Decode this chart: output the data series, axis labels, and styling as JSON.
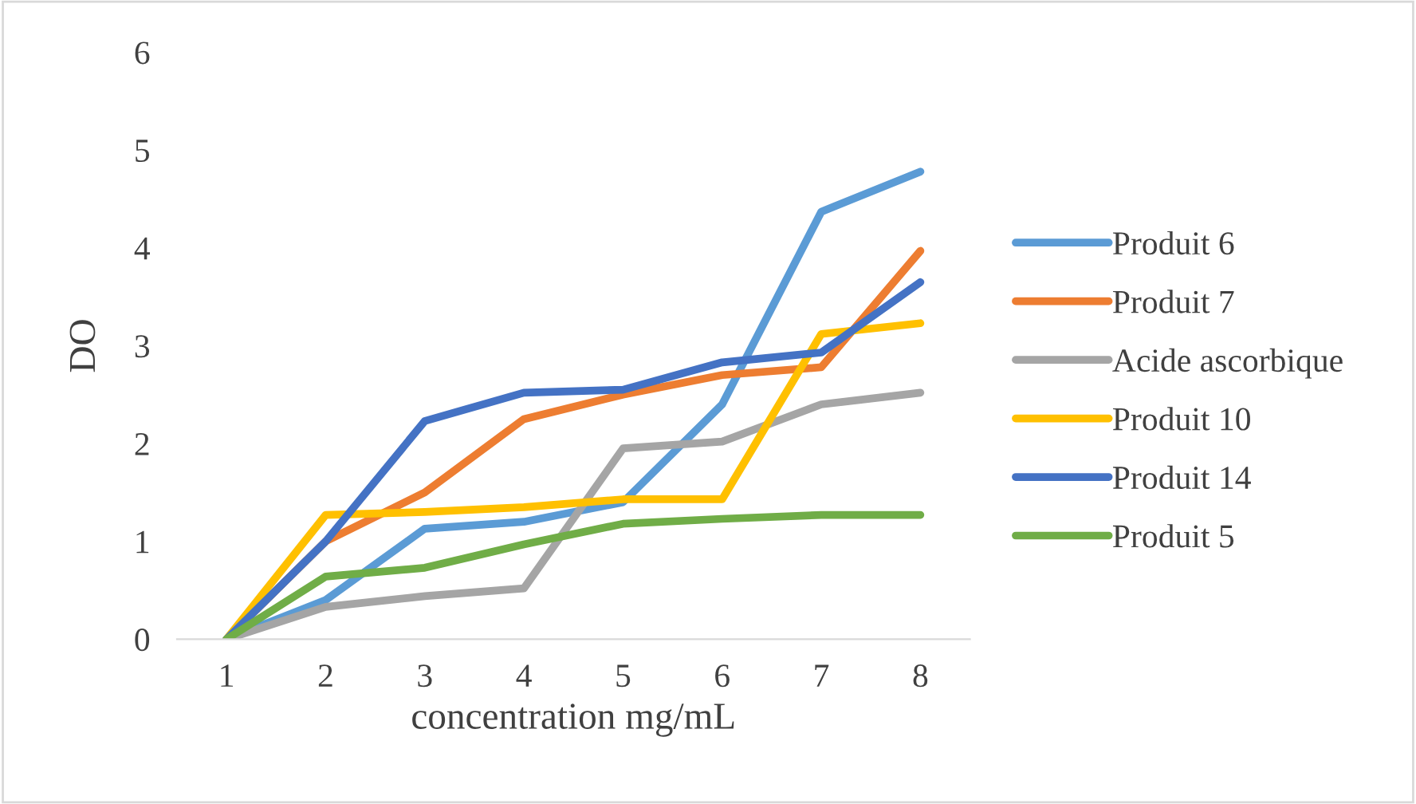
{
  "chart_data": {
    "type": "line",
    "xlabel": "concentration mg/mL",
    "ylabel": "DO",
    "categories": [
      "1",
      "2",
      "3",
      "4",
      "5",
      "6",
      "7",
      "8"
    ],
    "ylim": [
      0,
      6
    ],
    "yticks": [
      0,
      1,
      2,
      3,
      4,
      5,
      6
    ],
    "grid": false,
    "legend": "right",
    "marker": "none",
    "line_style": "solid",
    "series": [
      {
        "name": "Produit 6",
        "color": "#5b9bd5",
        "values": [
          0,
          0.4,
          1.13,
          1.2,
          1.4,
          2.4,
          4.37,
          4.78
        ]
      },
      {
        "name": "Produit 7",
        "color": "#ed7d31",
        "values": [
          0,
          1.0,
          1.5,
          2.25,
          2.5,
          2.7,
          2.78,
          3.97
        ]
      },
      {
        "name": "Acide ascorbique",
        "color": "#a5a5a5",
        "values": [
          0,
          0.33,
          0.44,
          0.52,
          1.95,
          2.02,
          2.4,
          2.52
        ]
      },
      {
        "name": "Produit 10",
        "color": "#ffc000",
        "values": [
          0,
          1.27,
          1.3,
          1.35,
          1.43,
          1.43,
          3.12,
          3.23
        ]
      },
      {
        "name": "Produit 14",
        "color": "#4472c4",
        "values": [
          0,
          1.0,
          2.23,
          2.52,
          2.55,
          2.83,
          2.93,
          3.65
        ]
      },
      {
        "name": "Produit 5",
        "color": "#70ad47",
        "values": [
          0,
          0.64,
          0.73,
          0.97,
          1.18,
          1.23,
          1.27,
          1.27
        ]
      }
    ]
  }
}
